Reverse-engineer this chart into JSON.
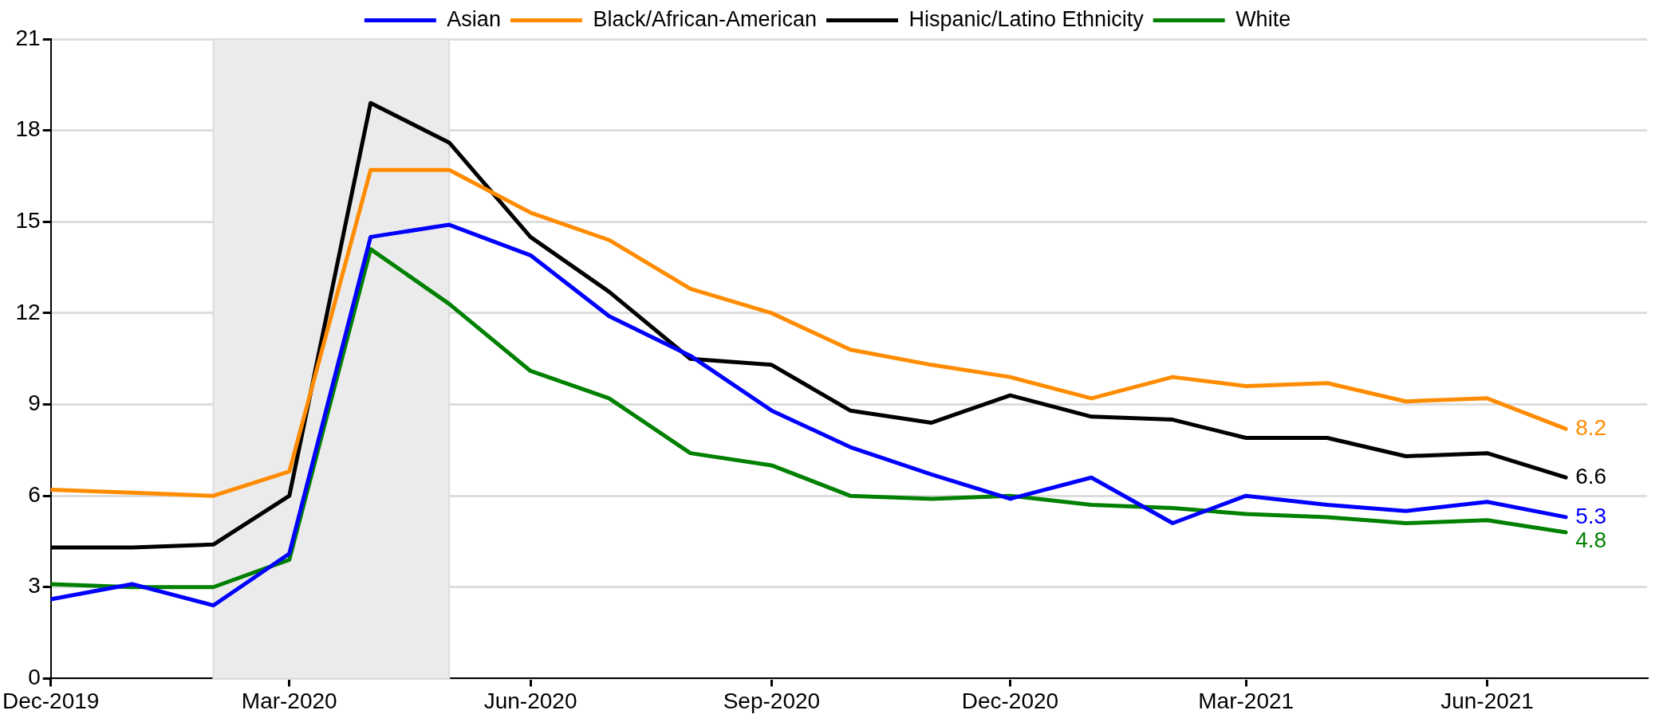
{
  "chart_data": {
    "type": "line",
    "x": [
      "2019-12",
      "2020-01",
      "2020-02",
      "2020-03",
      "2020-04",
      "2020-05",
      "2020-06",
      "2020-07",
      "2020-08",
      "2020-09",
      "2020-10",
      "2020-11",
      "2020-12",
      "2021-01",
      "2021-02",
      "2021-03",
      "2021-04",
      "2021-05",
      "2021-06",
      "2021-07"
    ],
    "series": [
      {
        "name": "Asian",
        "color": "#0000ff",
        "values": [
          2.6,
          3.1,
          2.4,
          4.1,
          14.5,
          14.9,
          13.9,
          11.9,
          10.6,
          8.8,
          7.6,
          6.7,
          5.9,
          6.6,
          5.1,
          6.0,
          5.7,
          5.5,
          5.8,
          5.3
        ]
      },
      {
        "name": "Black/African-American",
        "color": "#ff8c00",
        "values": [
          6.2,
          6.1,
          6.0,
          6.8,
          16.7,
          16.7,
          15.3,
          14.4,
          12.8,
          12.0,
          10.8,
          10.3,
          9.9,
          9.2,
          9.9,
          9.6,
          9.7,
          9.1,
          9.2,
          8.2
        ]
      },
      {
        "name": "Hispanic/Latino Ethnicity",
        "color": "#000000",
        "values": [
          4.3,
          4.3,
          4.4,
          6.0,
          18.9,
          17.6,
          14.5,
          12.7,
          10.5,
          10.3,
          8.8,
          8.4,
          9.3,
          8.6,
          8.5,
          7.9,
          7.9,
          7.3,
          7.4,
          6.6
        ]
      },
      {
        "name": "White",
        "color": "#008000",
        "values": [
          3.1,
          3.0,
          3.0,
          3.9,
          14.1,
          12.3,
          10.1,
          9.2,
          7.4,
          7.0,
          6.0,
          5.9,
          6.0,
          5.7,
          5.6,
          5.4,
          5.3,
          5.1,
          5.2,
          4.8
        ]
      }
    ],
    "xlim": [
      "2019-12",
      "2021-08"
    ],
    "xticks": [
      {
        "value": "2019-12",
        "label": "Dec-2019"
      },
      {
        "value": "2020-03",
        "label": "Mar-2020"
      },
      {
        "value": "2020-06",
        "label": "Jun-2020"
      },
      {
        "value": "2020-09",
        "label": "Sep-2020"
      },
      {
        "value": "2020-12",
        "label": "Dec-2020"
      },
      {
        "value": "2021-03",
        "label": "Mar-2021"
      },
      {
        "value": "2021-06",
        "label": "Jun-2021"
      }
    ],
    "ylim": [
      0,
      21
    ],
    "yticks": [
      0,
      3,
      6,
      9,
      12,
      15,
      18,
      21
    ],
    "bands": [
      {
        "axis": "x",
        "from": "2020-02",
        "to": "2020-05",
        "color": "#ebebeb"
      }
    ],
    "annotations": [
      {
        "text": "8.2",
        "x": "2021-07",
        "y": 8.2
      },
      {
        "text": "6.6",
        "x": "2021-07",
        "y": 6.6
      },
      {
        "text": "5.3",
        "x": "2021-07",
        "y": 5.3
      },
      {
        "text": "4.8",
        "x": "2021-07",
        "y": 4.8
      }
    ],
    "grid": "y",
    "legend": "top",
    "marker": "none",
    "line_style": "solid"
  }
}
